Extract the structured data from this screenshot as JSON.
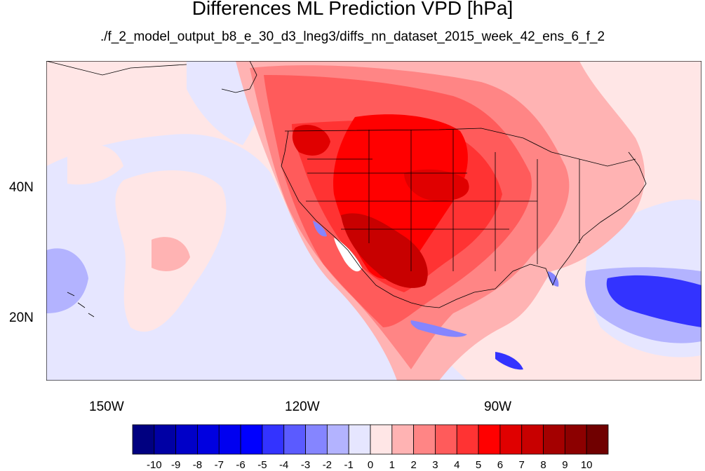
{
  "title": "Differences ML Prediction VPD [hPa]",
  "subtitle": "./f_2_model_output_b8_e_30_d3_lneg3/diffs_nn_dataset_2015_week_42_ens_6_f_2",
  "axes": {
    "lat_labels": [
      "40N",
      "20N"
    ],
    "lon_labels": [
      "150W",
      "120W",
      "90W"
    ]
  },
  "colorbar": {
    "labels": [
      "-10",
      "-9",
      "-8",
      "-7",
      "-6",
      "-5",
      "-4",
      "-3",
      "-2",
      "-1",
      "0",
      "1",
      "2",
      "3",
      "4",
      "5",
      "6",
      "7",
      "8",
      "9",
      "10"
    ],
    "colors": [
      "#000080",
      "#0000a4",
      "#0000c8",
      "#0000e0",
      "#0000f0",
      "#0000ff",
      "#3333ff",
      "#5b5bff",
      "#8585ff",
      "#b3b3ff",
      "#e6e6ff",
      "#ffe6e6",
      "#ffb3b3",
      "#ff8585",
      "#ff5b5b",
      "#ff3333",
      "#ff0000",
      "#e00000",
      "#c80000",
      "#a40000",
      "#8c0000",
      "#700000"
    ]
  },
  "map_colors": {
    "ocean_background": "#ffe6e6",
    "neutral_blue": "#e6e6ff",
    "light_blue": "#b3b3ff",
    "mid_blue": "#8585ff",
    "strong_blue": "#3333ff",
    "light_red": "#ffb3b3",
    "mid_red": "#ff8585",
    "red": "#ff5b5b",
    "strong_red": "#ff3333",
    "pure_red": "#ff0000",
    "dark_red": "#e00000",
    "darker_red": "#c80000",
    "white_patch": "#ffffff"
  }
}
